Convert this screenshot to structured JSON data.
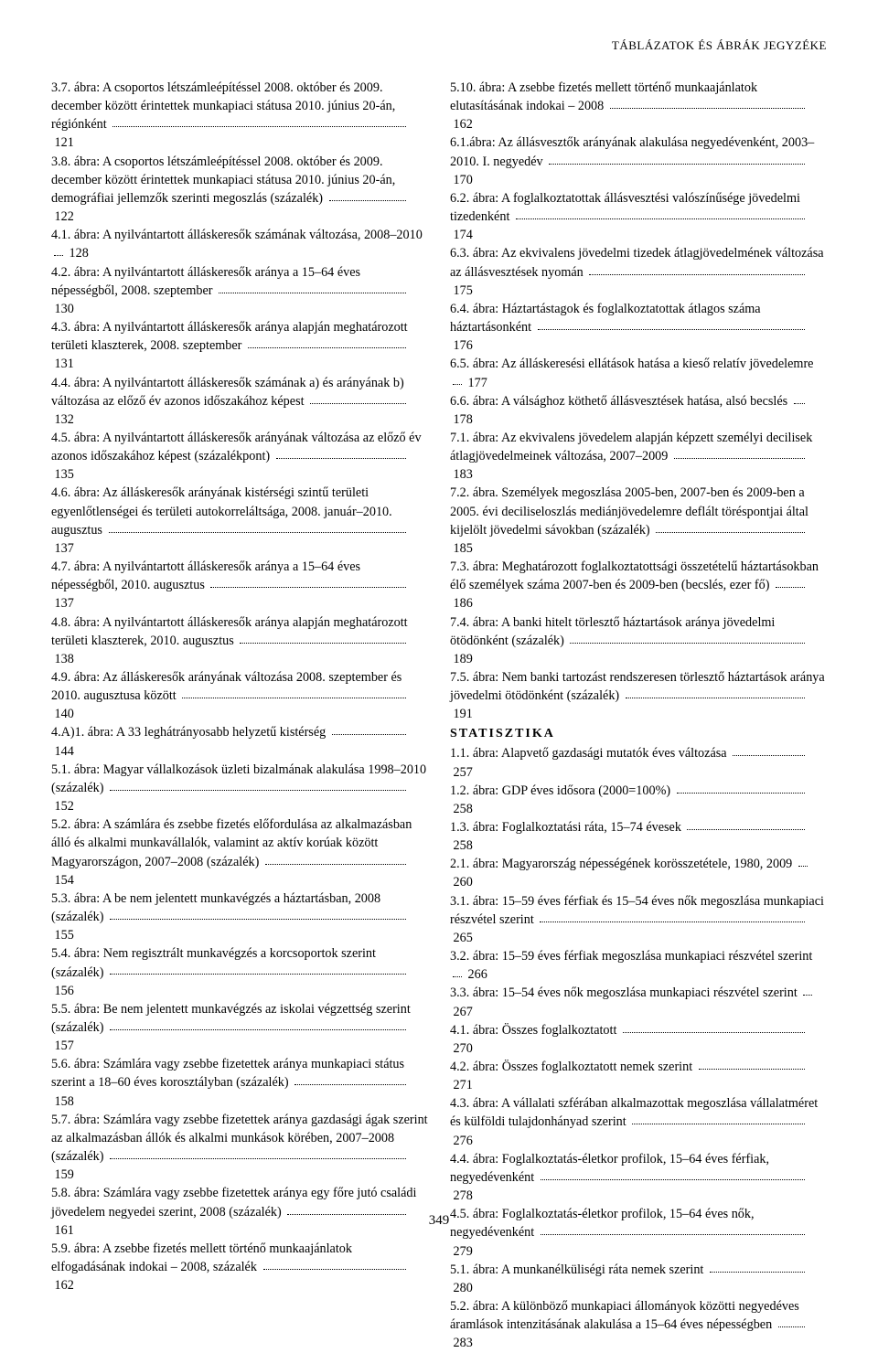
{
  "header": "TÁBLÁZATOK ÉS ÁBRÁK JEGYZÉKE",
  "footer": "349",
  "left": [
    {
      "t": "3.7. ábra: A csoportos létszámleépítéssel 2008. október és 2009. december között érintettek munkapiaci státusa 2010. június 20-án, régiónként",
      "p": "121"
    },
    {
      "t": "3.8. ábra: A csoportos létszámleépítéssel 2008. október és 2009. december között érintettek munkapiaci státusa 2010. június 20-án, demográfiai jellemzők szerinti megoszlás (százalék)",
      "p": "122"
    },
    {
      "t": "4.1. ábra: A nyilvántartott álláskeresők számának változása, 2008–2010",
      "p": "128"
    },
    {
      "t": "4.2. ábra: A nyilvántartott álláskeresők aránya a 15–64 éves népességből, 2008. szeptember",
      "p": "130"
    },
    {
      "t": "4.3. ábra: A nyilvántartott álláskeresők aránya alapján meghatározott területi klaszterek, 2008. szeptember",
      "p": "131"
    },
    {
      "t": "4.4. ábra: A nyilvántartott álláskeresők számának a) és arányának b) változása az előző év azonos időszakához képest",
      "p": "132"
    },
    {
      "t": "4.5. ábra: A nyilvántartott álláskeresők arányának változása az előző év azonos időszakához képest (százalékpont)",
      "p": "135"
    },
    {
      "t": "4.6. ábra: Az álláskeresők arányának kistérségi szintű területi egyenlőtlenségei és területi autokorreláltsága, 2008. január–2010. augusztus",
      "p": "137"
    },
    {
      "t": "4.7. ábra: A nyilvántartott álláskeresők aránya a 15–64 éves népességből, 2010. augusztus",
      "p": "137"
    },
    {
      "t": "4.8. ábra: A nyilvántartott álláskeresők aránya alapján meghatározott területi klaszterek, 2010. augusztus",
      "p": "138"
    },
    {
      "t": "4.9. ábra: Az álláskeresők arányának változása 2008. szeptember és 2010. augusztusa között",
      "p": "140"
    },
    {
      "t": "4.A)1. ábra: A 33 leghátrányosabb helyzetű kistérség",
      "p": "144"
    },
    {
      "t": "5.1. ábra: Magyar vállalkozások üzleti bizalmának alakulása 1998–2010 (százalék)",
      "p": "152"
    },
    {
      "t": "5.2. ábra: A számlára és zsebbe fizetés előfordulása az alkalmazásban álló és alkalmi munkavállalók, valamint az aktív korúak között Magyarországon, 2007–2008 (százalék)",
      "p": "154"
    },
    {
      "t": "5.3. ábra: A be nem jelentett munkavégzés a háztartásban, 2008 (százalék)",
      "p": "155"
    },
    {
      "t": "5.4. ábra: Nem regisztrált munkavégzés a korcsoportok szerint (százalék)",
      "p": "156"
    },
    {
      "t": "5.5. ábra: Be nem jelentett munkavégzés az iskolai végzettség szerint (százalék)",
      "p": "157"
    },
    {
      "t": "5.6. ábra: Számlára vagy zsebbe fizetettek aránya munkapiaci státus szerint a 18–60 éves korosztályban (százalék)",
      "p": "158"
    },
    {
      "t": "5.7. ábra: Számlára vagy zsebbe fizetettek aránya gazdasági ágak szerint az alkalmazásban állók és alkalmi munkások körében, 2007–2008 (százalék)",
      "p": "159"
    },
    {
      "t": "5.8. ábra: Számlára vagy zsebbe fizetettek aránya egy főre jutó családi jövedelem negyedei szerint, 2008 (százalék)",
      "p": "161"
    },
    {
      "t": "5.9. ábra: A zsebbe fizetés mellett történő munkaajánlatok elfogadásának indokai – 2008, százalék",
      "p": "162"
    }
  ],
  "right": [
    {
      "t": "5.10. ábra: A zsebbe fizetés mellett történő munkaajánlatok elutasításának indokai – 2008",
      "p": "162"
    },
    {
      "t": "6.1.ábra: Az állásvesztők arányának alakulása negyedévenként, 2003–2010. I. negyedév",
      "p": "170"
    },
    {
      "t": "6.2. ábra: A foglalkoztatottak állásvesztési valószínűsége jövedelmi tizedenként",
      "p": "174"
    },
    {
      "t": "6.3. ábra: Az ekvivalens jövedelmi tizedek átlagjövedelmének változása az állásvesztések nyomán",
      "p": "175"
    },
    {
      "t": "6.4. ábra: Háztartástagok és foglalkoztatottak átlagos száma háztartásonként",
      "p": "176"
    },
    {
      "t": "6.5. ábra: Az álláskeresési ellátások hatása a kieső relatív jövedelemre",
      "p": "177"
    },
    {
      "t": "6.6. ábra: A válsághoz köthető állásvesztések hatása, alsó becslés",
      "p": "178"
    },
    {
      "t": "7.1. ábra: Az ekvivalens jövedelem alapján képzett személyi decilisek átlagjövedelmeinek változása, 2007–2009",
      "p": "183"
    },
    {
      "t": "7.2. ábra. Személyek megoszlása 2005-ben, 2007-ben és 2009-ben a 2005. évi deciliseloszlás mediánjövedelemre deflált töréspontjai által kijelölt jövedelmi sávokban (százalék)",
      "p": "185"
    },
    {
      "t": "7.3. ábra: Meghatározott foglalkoztatottsági összetételű háztartásokban élő személyek száma 2007-ben és 2009-ben (becslés, ezer fő)",
      "p": "186"
    },
    {
      "t": "7.4. ábra: A banki hitelt törlesztő háztartások aránya jövedelmi ötödönként (százalék)",
      "p": "189"
    },
    {
      "t": "7.5. ábra: Nem banki tartozást rendszeresen törlesztő háztartások aránya jövedelmi ötödönként (százalék)",
      "p": "191"
    },
    {
      "section": "STATISZTIKA"
    },
    {
      "t": "1.1. ábra: Alapvető gazdasági mutatók éves változása",
      "p": "257"
    },
    {
      "t": "1.2. ábra: GDP éves idősora (2000=100%)",
      "p": "258"
    },
    {
      "t": "1.3. ábra: Foglalkoztatási ráta, 15–74 évesek",
      "p": "258"
    },
    {
      "t": "2.1. ábra: Magyarország népességének korösszetétele, 1980, 2009",
      "p": "260"
    },
    {
      "t": "3.1. ábra: 15–59 éves férfiak és 15–54 éves nők megoszlása munkapiaci részvétel szerint",
      "p": "265"
    },
    {
      "t": "3.2. ábra: 15–59 éves férfiak megoszlása munkapiaci részvétel szerint",
      "p": "266"
    },
    {
      "t": "3.3. ábra: 15–54 éves nők megoszlása munkapiaci részvétel szerint",
      "p": "267"
    },
    {
      "t": "4.1. ábra: Összes foglalkoztatott",
      "p": "270"
    },
    {
      "t": "4.2. ábra: Összes foglalkoztatott nemek szerint",
      "p": "271"
    },
    {
      "t": "4.3. ábra: A vállalati szférában alkalmazottak megoszlása vállalatméret és külföldi tulajdonhányad szerint",
      "p": "276"
    },
    {
      "t": "4.4. ábra: Foglalkoztatás-életkor profilok, 15–64 éves férfiak, negyedévenként",
      "p": "278"
    },
    {
      "t": "4.5. ábra: Foglalkoztatás-életkor profilok, 15–64 éves nők, negyedévenként",
      "p": "279"
    },
    {
      "t": "5.1. ábra: A munkanélküliségi ráta nemek szerint",
      "p": "280"
    },
    {
      "t": "5.2. ábra: A különböző munkapiaci állományok közötti negyedéves áramlások intenzitásának alakulása a 15–64 éves népességben",
      "p": "283"
    }
  ]
}
